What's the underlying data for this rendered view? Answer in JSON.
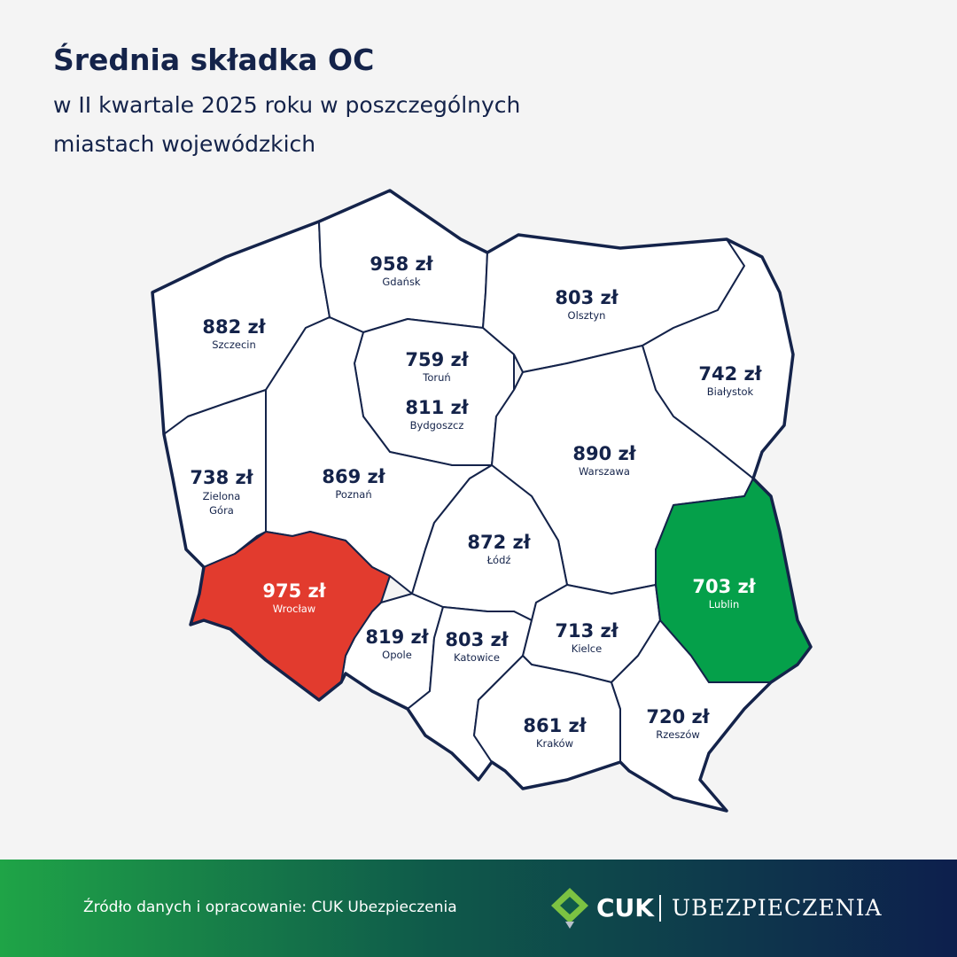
{
  "header": {
    "title": "Średnia składka OC",
    "subtitle_lines": [
      "w II kwartale 2025 roku w poszczególnych",
      "miastach wojewódzkich"
    ]
  },
  "regions": [
    {
      "value": "958 zł",
      "city": "Gdańsk"
    },
    {
      "value": "803 zł",
      "city": "Olsztyn"
    },
    {
      "value": "882 zł",
      "city": "Szczecin"
    },
    {
      "value": "759 zł",
      "city": "Toruń"
    },
    {
      "value": "811 zł",
      "city": "Bydgoszcz"
    },
    {
      "value": "742 zł",
      "city": "Białystok"
    },
    {
      "value": "890 zł",
      "city": "Warszawa"
    },
    {
      "value": "738 zł",
      "city": "Zielona Góra"
    },
    {
      "value": "869 zł",
      "city": "Poznań"
    },
    {
      "value": "872 zł",
      "city": "Łódź"
    },
    {
      "value": "975 zł",
      "city": "Wrocław"
    },
    {
      "value": "703 zł",
      "city": "Lublin"
    },
    {
      "value": "819 zł",
      "city": "Opole"
    },
    {
      "value": "803 zł",
      "city": "Katowice"
    },
    {
      "value": "713 zł",
      "city": "Kielce"
    },
    {
      "value": "861 zł",
      "city": "Kraków"
    },
    {
      "value": "720 zł",
      "city": "Rzeszów"
    }
  ],
  "footer": {
    "source": "Źródło danych i opracowanie: CUK Ubezpieczenia",
    "logo_short": "CUK",
    "logo_long": "UBEZPIECZENIA"
  }
}
